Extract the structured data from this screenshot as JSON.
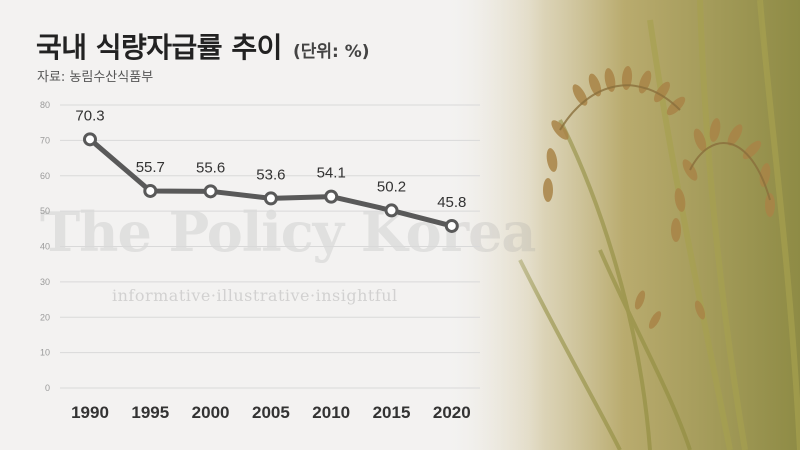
{
  "header": {
    "title": "국내 식량자급률 추이",
    "unit": "(단위: %)",
    "source": "자료: 농림수산식품부"
  },
  "watermark": {
    "brand": "The Policy Korea",
    "tagline": "informative·illustrative·insightful"
  },
  "colors": {
    "line": "#595959",
    "marker_fill": "#ffffff",
    "grid": "#d9d9d9",
    "background": "#f3f2f1"
  },
  "chart_data": {
    "type": "line",
    "title": "국내 식량자급률 추이",
    "categories": [
      "1990",
      "1995",
      "2000",
      "2005",
      "2010",
      "2015",
      "2020"
    ],
    "values": [
      70.3,
      55.7,
      55.6,
      53.6,
      54.1,
      50.2,
      45.8
    ],
    "value_labels": [
      "70.3",
      "55.7",
      "55.6",
      "53.6",
      "54.1",
      "50.2",
      "45.8"
    ],
    "yticks": [
      0,
      10,
      20,
      30,
      40,
      50,
      60,
      70,
      80
    ],
    "ylim": [
      0,
      80
    ],
    "grid": true,
    "legend": "none",
    "xlabel": "",
    "ylabel": ""
  }
}
